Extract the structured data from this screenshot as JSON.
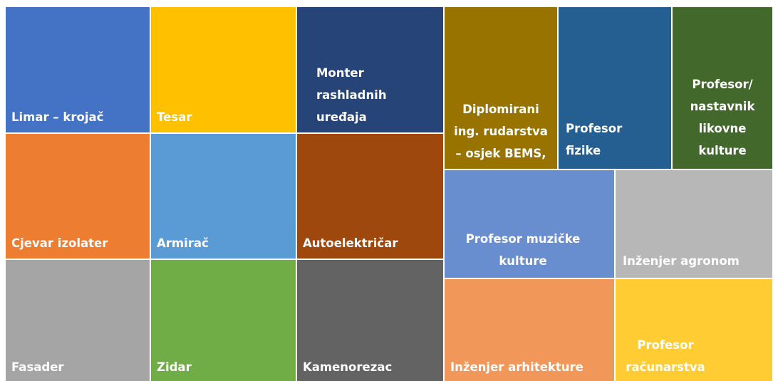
{
  "nodes": [
    {
      "label": "Limar – krojač",
      "color": "#4472c4"
    },
    {
      "label": "Cjevar izolater",
      "color": "#ed7d31"
    },
    {
      "label": "Fasader",
      "color": "#a5a5a5"
    },
    {
      "label": "Tesar",
      "color": "#ffc000"
    },
    {
      "label": "Armirač",
      "color": "#5b9bd5"
    },
    {
      "label": "Zidar",
      "color": "#70ad47"
    },
    {
      "label": "Monter rashladnih uređaja",
      "color": "#264478"
    },
    {
      "label": "Autoelektričar",
      "color": "#9e480e"
    },
    {
      "label": "Kamenorezac",
      "color": "#636363"
    },
    {
      "label": "Diplomirani ing. rudarstva – osjek BEMS,",
      "color": "#997300"
    },
    {
      "label": "Profesor fizike",
      "color": "#255e91"
    },
    {
      "label": "Profesor/ nastavnik likovne kulture",
      "color": "#43682b"
    },
    {
      "label": "Profesor muzičke kulture",
      "color": "#698ed0"
    },
    {
      "label": "Inženjer agronom",
      "color": "#b7b7b7"
    },
    {
      "label": "Inženjer arhitekture",
      "color": "#f1975a"
    },
    {
      "label": "Profesor računarstva",
      "color": "#ffcd33"
    }
  ]
}
